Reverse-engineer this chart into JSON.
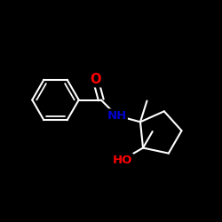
{
  "background": "#000000",
  "bond_color": "#ffffff",
  "bond_width": 1.5,
  "atom_colors": {
    "O": "#ff0000",
    "N": "#0000cd",
    "C": "#ffffff",
    "H": "#ffffff"
  },
  "font_size": 8.5,
  "fig_size": [
    2.5,
    2.5
  ],
  "dpi": 100,
  "xlim": [
    0,
    10
  ],
  "ylim": [
    0,
    10
  ]
}
